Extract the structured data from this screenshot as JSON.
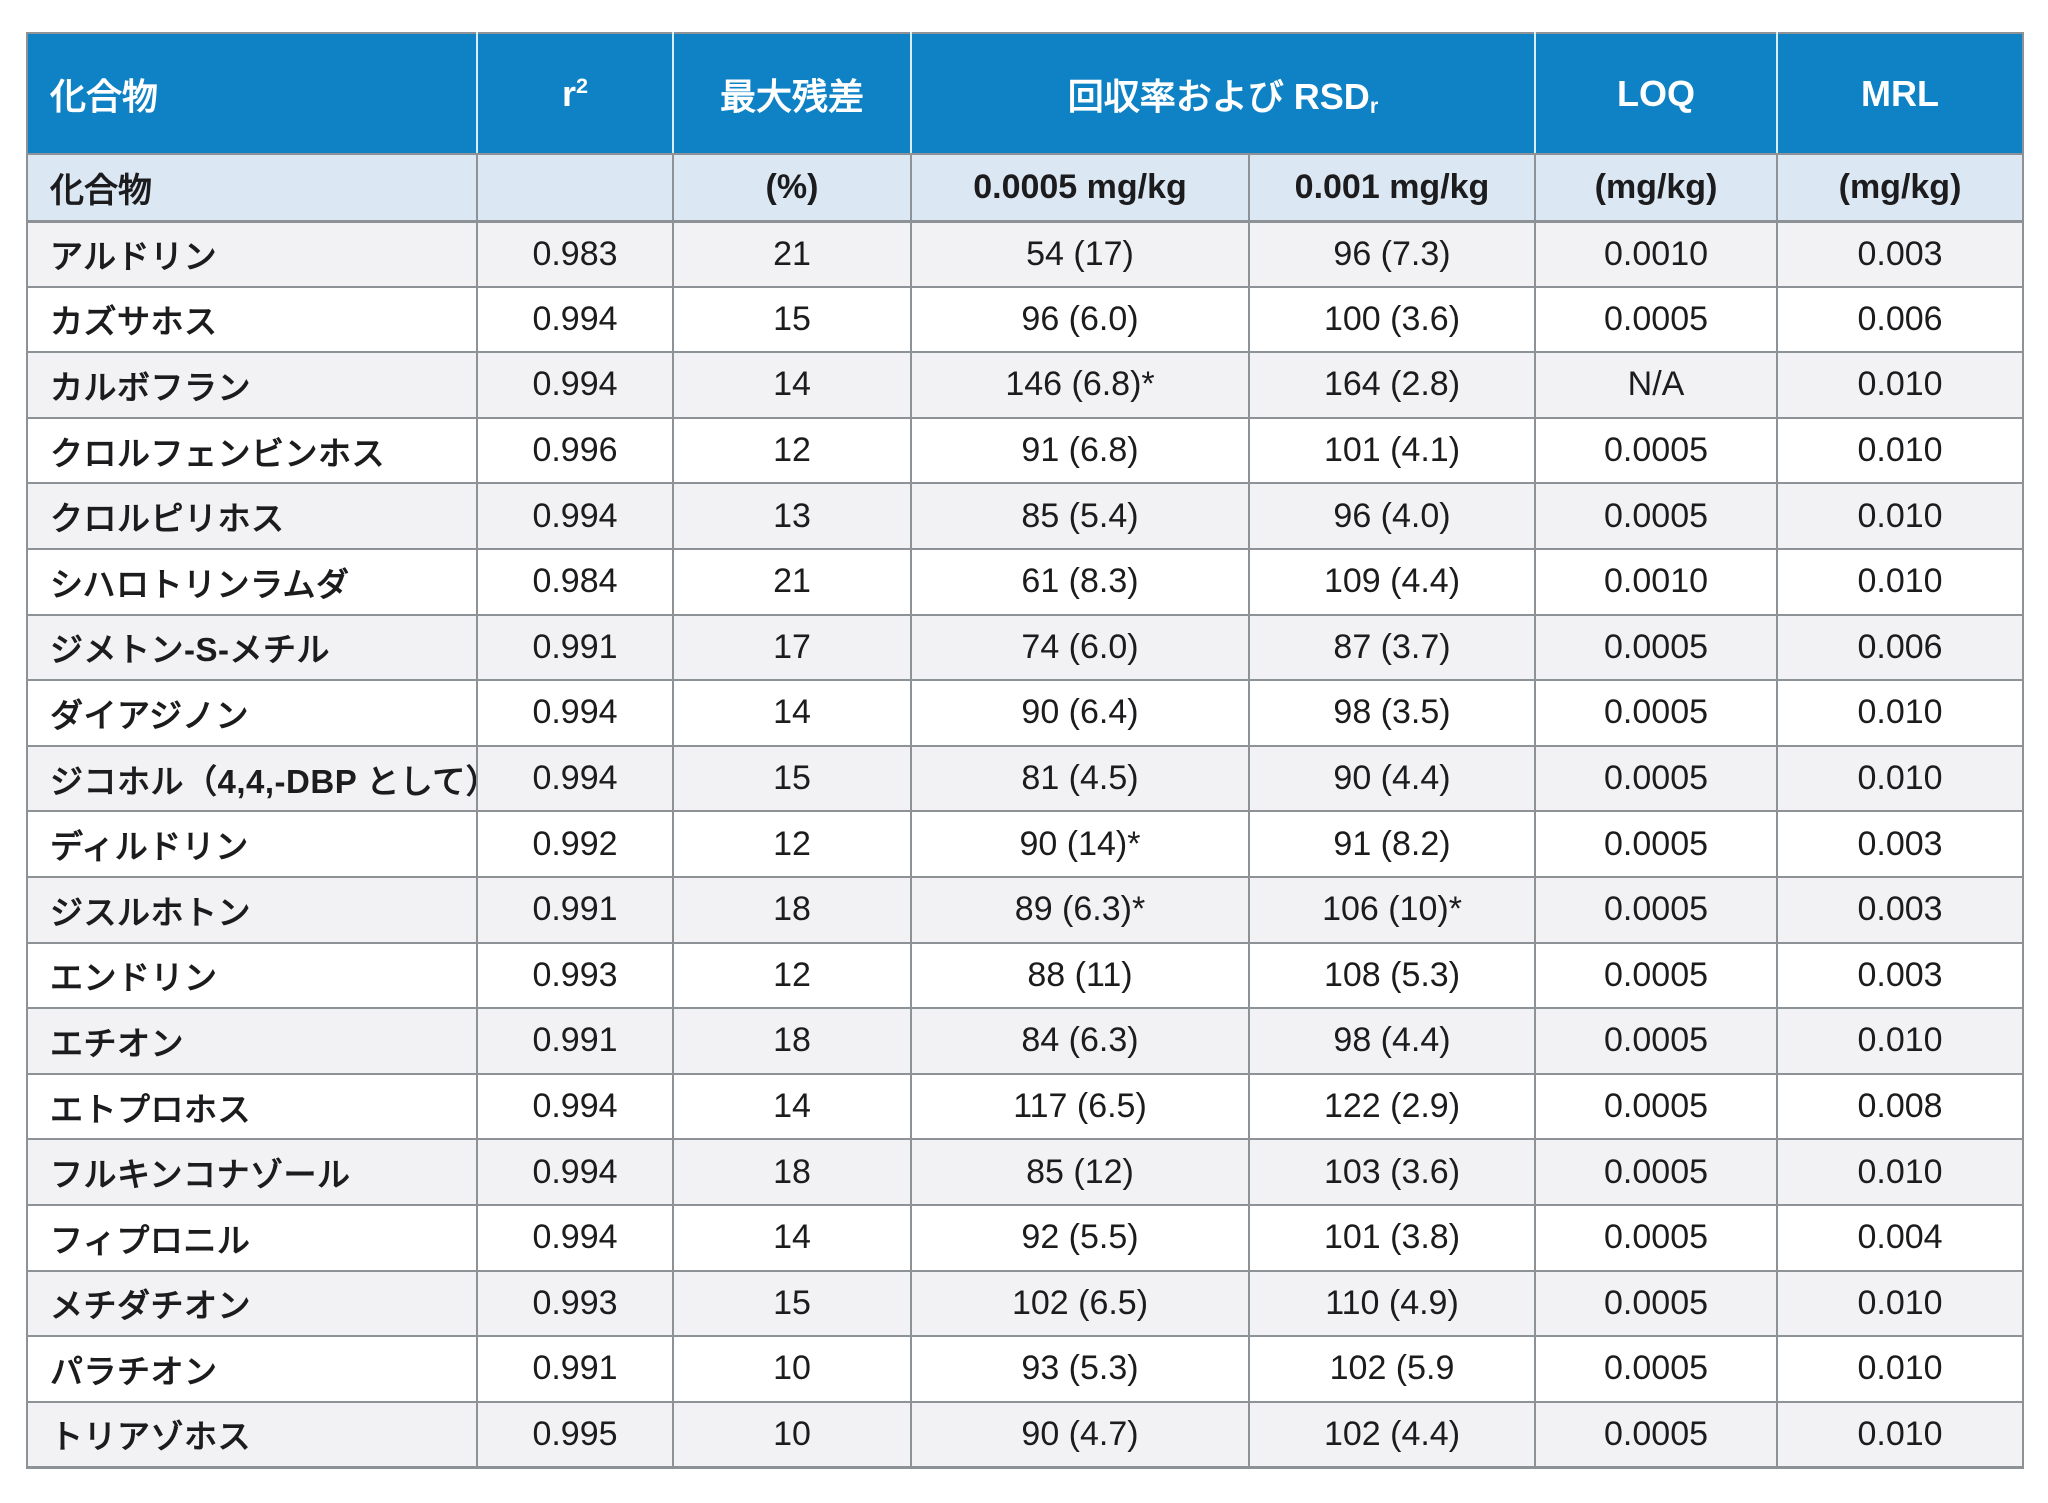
{
  "title_row": {
    "compound": "化合物",
    "r_base": "r",
    "r_exponent": "2",
    "max_residual": "最大残差",
    "recovery_label": "回収率および RSD",
    "recovery_subscript": "r",
    "loq": "LOQ",
    "mrl": "MRL"
  },
  "units_row": {
    "compound": "化合物",
    "r2": "",
    "max_residual": "(%)",
    "spike_level_1": "0.0005 mg/kg",
    "spike_level_2": "0.001 mg/kg",
    "loq": "(mg/kg)",
    "mrl": "(mg/kg)"
  },
  "rows": [
    {
      "compound": "アルドリン",
      "r2": "0.983",
      "max_residual": "21",
      "recovery_0_0005": "54 (17)",
      "recovery_0_001": "96 (7.3)",
      "loq": "0.0010",
      "mrl": "0.003"
    },
    {
      "compound": "カズサホス",
      "r2": "0.994",
      "max_residual": "15",
      "recovery_0_0005": "96 (6.0)",
      "recovery_0_001": "100 (3.6)",
      "loq": "0.0005",
      "mrl": "0.006"
    },
    {
      "compound": "カルボフラン",
      "r2": "0.994",
      "max_residual": "14",
      "recovery_0_0005": "146 (6.8)*",
      "recovery_0_001": "164 (2.8)",
      "loq": "N/A",
      "mrl": "0.010"
    },
    {
      "compound": "クロルフェンビンホス",
      "r2": "0.996",
      "max_residual": "12",
      "recovery_0_0005": "91 (6.8)",
      "recovery_0_001": "101 (4.1)",
      "loq": "0.0005",
      "mrl": "0.010"
    },
    {
      "compound": "クロルピリホス",
      "r2": "0.994",
      "max_residual": "13",
      "recovery_0_0005": "85 (5.4)",
      "recovery_0_001": "96 (4.0)",
      "loq": "0.0005",
      "mrl": "0.010"
    },
    {
      "compound": "シハロトリンラムダ",
      "r2": "0.984",
      "max_residual": "21",
      "recovery_0_0005": "61 (8.3)",
      "recovery_0_001": "109 (4.4)",
      "loq": "0.0010",
      "mrl": "0.010"
    },
    {
      "compound": "ジメトン-S-メチル",
      "r2": "0.991",
      "max_residual": "17",
      "recovery_0_0005": "74 (6.0)",
      "recovery_0_001": "87 (3.7)",
      "loq": "0.0005",
      "mrl": "0.006"
    },
    {
      "compound": "ダイアジノン",
      "r2": "0.994",
      "max_residual": "14",
      "recovery_0_0005": "90 (6.4)",
      "recovery_0_001": "98 (3.5)",
      "loq": "0.0005",
      "mrl": "0.010"
    },
    {
      "compound": "ジコホル（4,4,-DBP として）",
      "r2": "0.994",
      "max_residual": "15",
      "recovery_0_0005": "81 (4.5)",
      "recovery_0_001": "90 (4.4)",
      "loq": "0.0005",
      "mrl": "0.010"
    },
    {
      "compound": "ディルドリン",
      "r2": "0.992",
      "max_residual": "12",
      "recovery_0_0005": "90 (14)*",
      "recovery_0_001": "91 (8.2)",
      "loq": "0.0005",
      "mrl": "0.003"
    },
    {
      "compound": "ジスルホトン",
      "r2": "0.991",
      "max_residual": "18",
      "recovery_0_0005": "89 (6.3)*",
      "recovery_0_001": "106 (10)*",
      "loq": "0.0005",
      "mrl": "0.003"
    },
    {
      "compound": "エンドリン",
      "r2": "0.993",
      "max_residual": "12",
      "recovery_0_0005": "88 (11)",
      "recovery_0_001": "108 (5.3)",
      "loq": "0.0005",
      "mrl": "0.003"
    },
    {
      "compound": "エチオン",
      "r2": "0.991",
      "max_residual": "18",
      "recovery_0_0005": "84 (6.3)",
      "recovery_0_001": "98 (4.4)",
      "loq": "0.0005",
      "mrl": "0.010"
    },
    {
      "compound": "エトプロホス",
      "r2": "0.994",
      "max_residual": "14",
      "recovery_0_0005": "117 (6.5)",
      "recovery_0_001": "122 (2.9)",
      "loq": "0.0005",
      "mrl": "0.008"
    },
    {
      "compound": "フルキンコナゾール",
      "r2": "0.994",
      "max_residual": "18",
      "recovery_0_0005": "85 (12)",
      "recovery_0_001": "103 (3.6)",
      "loq": "0.0005",
      "mrl": "0.010"
    },
    {
      "compound": "フィプロニル",
      "r2": "0.994",
      "max_residual": "14",
      "recovery_0_0005": "92 (5.5)",
      "recovery_0_001": "101 (3.8)",
      "loq": "0.0005",
      "mrl": "0.004"
    },
    {
      "compound": "メチダチオン",
      "r2": "0.993",
      "max_residual": "15",
      "recovery_0_0005": "102 (6.5)",
      "recovery_0_001": "110 (4.9)",
      "loq": "0.0005",
      "mrl": "0.010"
    },
    {
      "compound": "パラチオン",
      "r2": "0.991",
      "max_residual": "10",
      "recovery_0_0005": "93 (5.3)",
      "recovery_0_001": "102 (5.9",
      "loq": "0.0005",
      "mrl": "0.010"
    },
    {
      "compound": "トリアゾホス",
      "r2": "0.995",
      "max_residual": "10",
      "recovery_0_0005": "90 (4.7)",
      "recovery_0_001": "102 (4.4)",
      "loq": "0.0005",
      "mrl": "0.010"
    }
  ],
  "colors": {
    "header_blue": "#0f82c5",
    "units_row_blue": "#dbe7f2",
    "row_alt_gray": "#f2f2f4",
    "border_gray": "#8d9297"
  }
}
